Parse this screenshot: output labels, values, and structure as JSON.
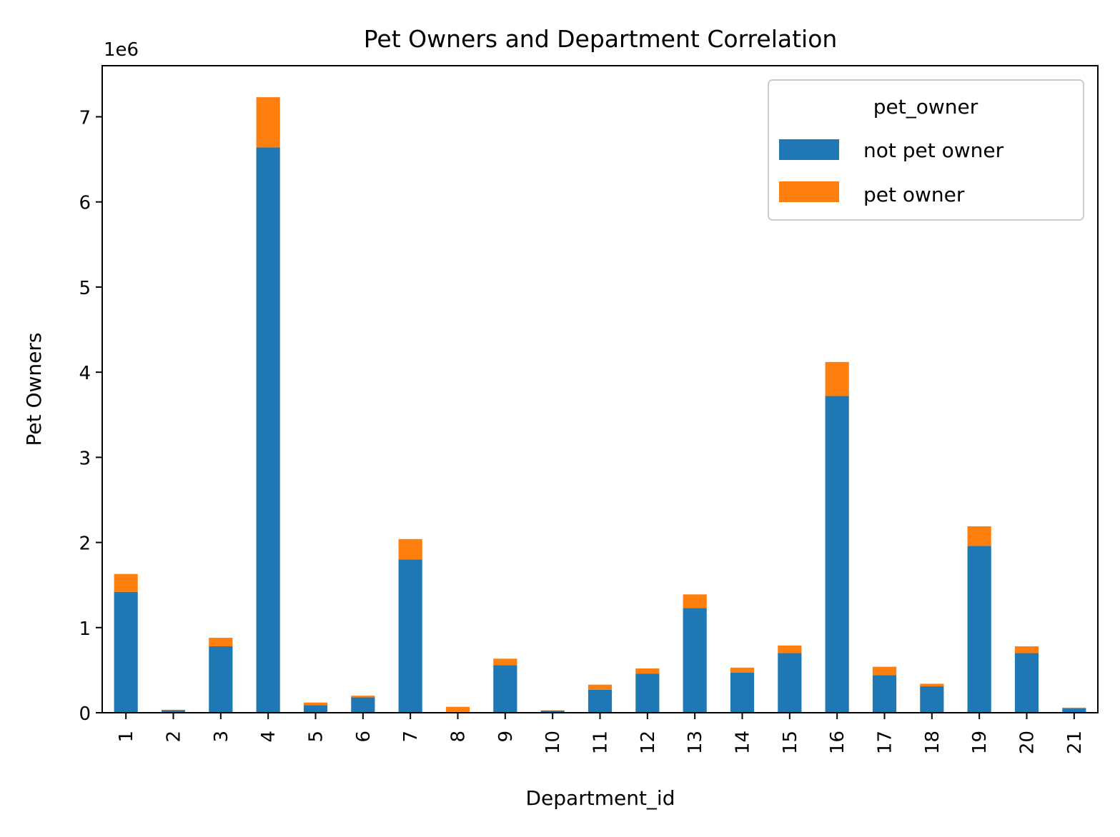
{
  "chart_data": {
    "type": "bar",
    "stacked": true,
    "title": "Pet Owners and Department Correlation",
    "xlabel": "Department_id",
    "ylabel": "Pet Owners",
    "y_offset_text": "1e6",
    "ylim": [
      0,
      7600000
    ],
    "yticks": [
      0,
      1000000,
      2000000,
      3000000,
      4000000,
      5000000,
      6000000,
      7000000
    ],
    "ytick_labels": [
      "0",
      "1",
      "2",
      "3",
      "4",
      "5",
      "6",
      "7"
    ],
    "categories": [
      "1",
      "2",
      "3",
      "4",
      "5",
      "6",
      "7",
      "8",
      "9",
      "10",
      "11",
      "12",
      "13",
      "14",
      "15",
      "16",
      "17",
      "18",
      "19",
      "20",
      "21"
    ],
    "legend_title": "pet_owner",
    "legend_position": "top-right",
    "grid": false,
    "series": [
      {
        "name": "not pet owner",
        "color": "#1f77b4",
        "values": [
          1420000,
          30000,
          780000,
          6640000,
          90000,
          180000,
          1800000,
          10000,
          560000,
          25000,
          270000,
          460000,
          1230000,
          470000,
          700000,
          3720000,
          440000,
          310000,
          1960000,
          700000,
          50000
        ]
      },
      {
        "name": "pet owner",
        "color": "#ff7f0e",
        "values": [
          210000,
          5000,
          100000,
          590000,
          30000,
          20000,
          240000,
          60000,
          75000,
          3000,
          60000,
          60000,
          160000,
          60000,
          90000,
          400000,
          100000,
          30000,
          230000,
          80000,
          10000
        ]
      }
    ]
  }
}
